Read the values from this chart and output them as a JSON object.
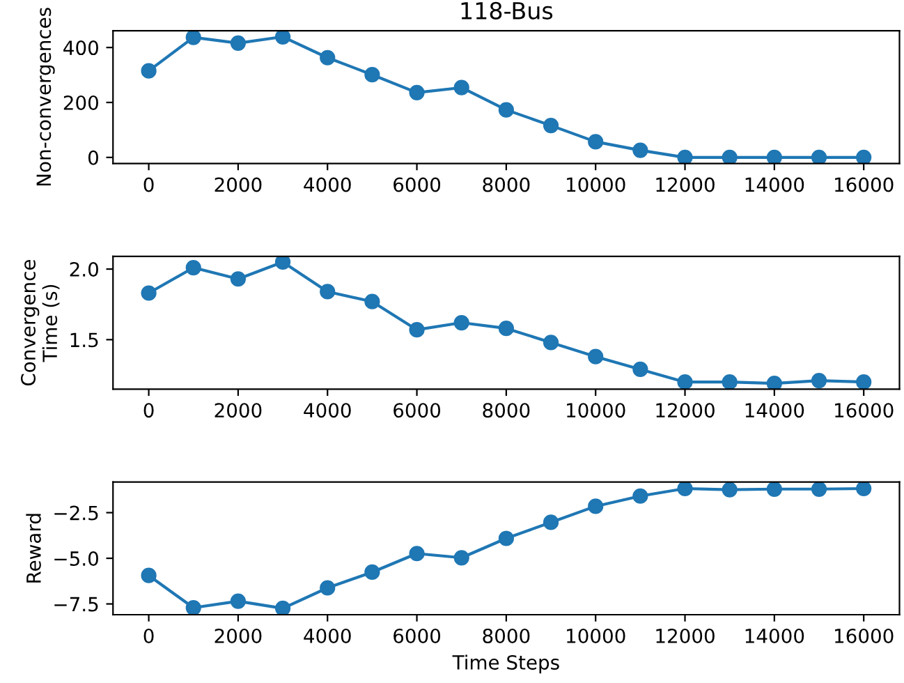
{
  "chart_data": [
    {
      "type": "line",
      "title": "118-Bus",
      "ylabel": "Non-convergences",
      "x": [
        0,
        1000,
        2000,
        3000,
        4000,
        5000,
        6000,
        7000,
        8000,
        9000,
        10000,
        11000,
        12000,
        13000,
        14000,
        15000,
        16000
      ],
      "series": [
        {
          "color": "#1f77b4",
          "values": [
            315,
            437,
            416,
            439,
            363,
            301,
            236,
            254,
            173,
            116,
            57,
            26,
            0,
            0,
            0,
            0,
            0
          ]
        }
      ],
      "xlim": [
        -800,
        16800
      ],
      "xticks": [
        0,
        2000,
        4000,
        6000,
        8000,
        10000,
        12000,
        14000,
        16000
      ],
      "ylim": [
        -22,
        461
      ],
      "yticks": [
        0,
        200,
        400
      ],
      "marker": "circle",
      "line_style": "solid"
    },
    {
      "type": "line",
      "ylabel": "Convergence\nTime (s)",
      "x": [
        0,
        1000,
        2000,
        3000,
        4000,
        5000,
        6000,
        7000,
        8000,
        9000,
        10000,
        11000,
        12000,
        13000,
        14000,
        15000,
        16000
      ],
      "series": [
        {
          "color": "#1f77b4",
          "values": [
            1.83,
            2.01,
            1.93,
            2.05,
            1.84,
            1.77,
            1.57,
            1.62,
            1.58,
            1.48,
            1.38,
            1.29,
            1.2,
            1.2,
            1.19,
            1.21,
            1.2
          ]
        }
      ],
      "xlim": [
        -800,
        16800
      ],
      "xticks": [
        0,
        2000,
        4000,
        6000,
        8000,
        10000,
        12000,
        14000,
        16000
      ],
      "ylim": [
        1.15,
        2.09
      ],
      "yticks": [
        {
          "value": 1.5,
          "label": "1.5"
        },
        {
          "value": 2.0,
          "label": "2.0"
        }
      ],
      "marker": "circle",
      "line_style": "solid"
    },
    {
      "type": "line",
      "xlabel": "Time Steps",
      "ylabel": "Reward",
      "x": [
        0,
        1000,
        2000,
        3000,
        4000,
        5000,
        6000,
        7000,
        8000,
        9000,
        10000,
        11000,
        12000,
        13000,
        14000,
        15000,
        16000
      ],
      "series": [
        {
          "color": "#1f77b4",
          "values": [
            -5.94,
            -7.71,
            -7.35,
            -7.74,
            -6.62,
            -5.76,
            -4.74,
            -4.97,
            -3.91,
            -3.03,
            -2.15,
            -1.59,
            -1.18,
            -1.24,
            -1.21,
            -1.21,
            -1.18
          ]
        }
      ],
      "xlim": [
        -800,
        16800
      ],
      "xticks": [
        0,
        2000,
        4000,
        6000,
        8000,
        10000,
        12000,
        14000,
        16000
      ],
      "ylim": [
        -8.09,
        -0.82
      ],
      "yticks": [
        {
          "value": -7.5,
          "label": "−7.5"
        },
        {
          "value": -5.0,
          "label": "−5.0"
        },
        {
          "value": -2.5,
          "label": "−2.5"
        }
      ],
      "marker": "circle",
      "line_style": "solid"
    }
  ]
}
